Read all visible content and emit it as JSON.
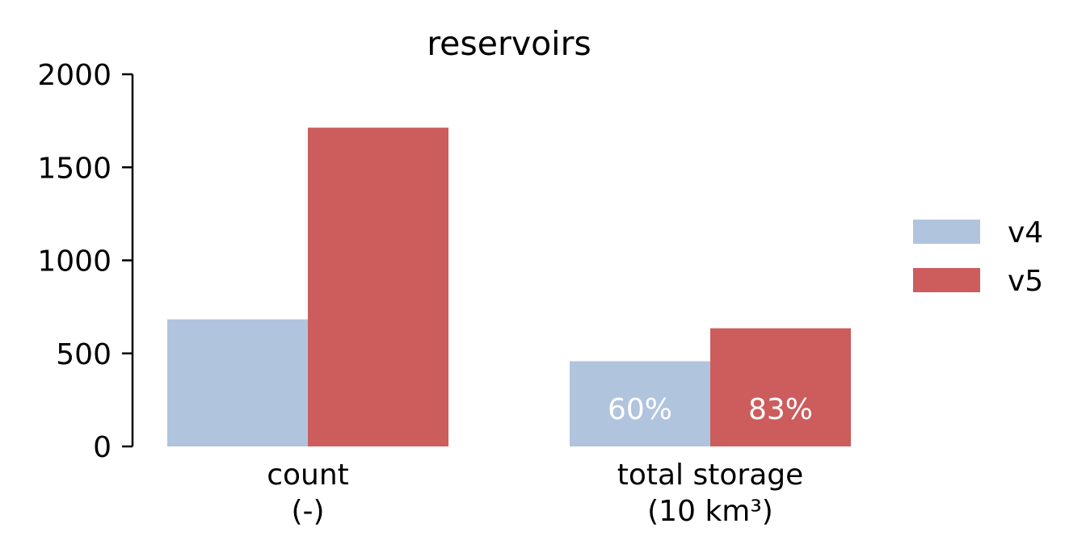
{
  "chart_data": {
    "type": "bar",
    "title": "reservoirs",
    "categories": [
      [
        "count",
        "(-)"
      ],
      [
        "total storage",
        "(10 km³)"
      ]
    ],
    "series": [
      {
        "name": "v4",
        "color": "#b0c4de",
        "values": [
          683,
          458
        ],
        "labels": [
          "",
          "60%"
        ]
      },
      {
        "name": "v5",
        "color": "#cd5c5c",
        "values": [
          1713,
          635
        ],
        "labels": [
          "",
          "83%"
        ]
      }
    ],
    "ylim": [
      0,
      2000
    ],
    "yticks": [
      0,
      500,
      1000,
      1500,
      2000
    ],
    "legend": "right",
    "grid": false
  }
}
